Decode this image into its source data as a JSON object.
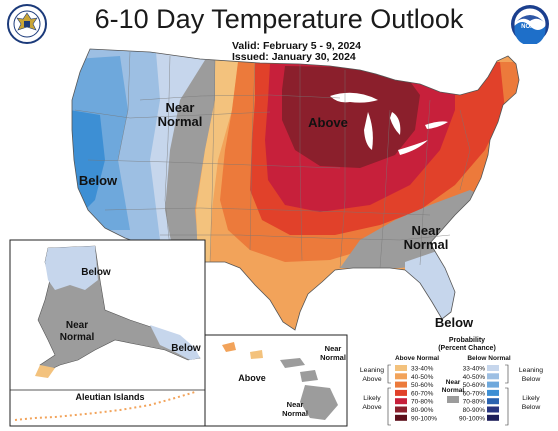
{
  "header": {
    "title": "6-10 Day Temperature Outlook",
    "valid_label": "Valid:",
    "valid_value": "February 5 - 9, 2024",
    "issued_label": "Issued:",
    "issued_value": "January 30, 2024"
  },
  "colors": {
    "below_33_40": "#c6d6ec",
    "below_40_50": "#9dbfe3",
    "below_50_60": "#6ea8dc",
    "below_60_70": "#3d8fd4",
    "above_33_40": "#f3c27d",
    "above_40_50": "#f2a35a",
    "above_50_60": "#ec7a3b",
    "above_60_70": "#e1412a",
    "above_70_80": "#c7203b",
    "above_80_90": "#8b1f2c",
    "near_normal": "#9c9c9c"
  },
  "map_labels": {
    "near_normal_west": "Near Normal",
    "above_midwest": "Above",
    "below_west": "Below",
    "near_normal_southeast": "Near Normal",
    "below_florida": "Below",
    "alaska_below": "Below",
    "alaska_near_normal": "Near Normal",
    "alaska_below_southeast": "Below",
    "aleutian_islands": "Aleutian Islands",
    "hawaii_above": "Above",
    "hawaii_near_normal_1": "Near Normal",
    "hawaii_near_normal_2": "Near Normal"
  },
  "legend": {
    "title": "Probability",
    "subtitle": "(Percent Chance)",
    "above_header": "Above Normal",
    "below_header": "Below Normal",
    "near_normal": "Near Normal",
    "leaning_above": "Leaning Above",
    "likely_above": "Likely Above",
    "leaning_below": "Leaning Below",
    "likely_below": "Likely Below",
    "above_bins": [
      {
        "label": "33-40%",
        "color": "#f3c27d"
      },
      {
        "label": "40-50%",
        "color": "#f2a35a"
      },
      {
        "label": "50-60%",
        "color": "#ec7a3b"
      },
      {
        "label": "60-70%",
        "color": "#e1412a"
      },
      {
        "label": "70-80%",
        "color": "#c7203b"
      },
      {
        "label": "80-90%",
        "color": "#8b1f2c"
      },
      {
        "label": "90-100%",
        "color": "#5c0e1a"
      }
    ],
    "below_bins": [
      {
        "label": "33-40%",
        "color": "#c6d6ec"
      },
      {
        "label": "40-50%",
        "color": "#9dbfe3"
      },
      {
        "label": "50-60%",
        "color": "#6ea8dc"
      },
      {
        "label": "60-70%",
        "color": "#3d8fd4"
      },
      {
        "label": "70-80%",
        "color": "#2a63b0"
      },
      {
        "label": "80-90%",
        "color": "#27347f"
      },
      {
        "label": "90-100%",
        "color": "#1d1f5a"
      }
    ]
  },
  "logos": {
    "left_seal": "commerce-seal-icon",
    "right_logo": "noaa-logo-icon",
    "noaa_text": "NOAA"
  }
}
